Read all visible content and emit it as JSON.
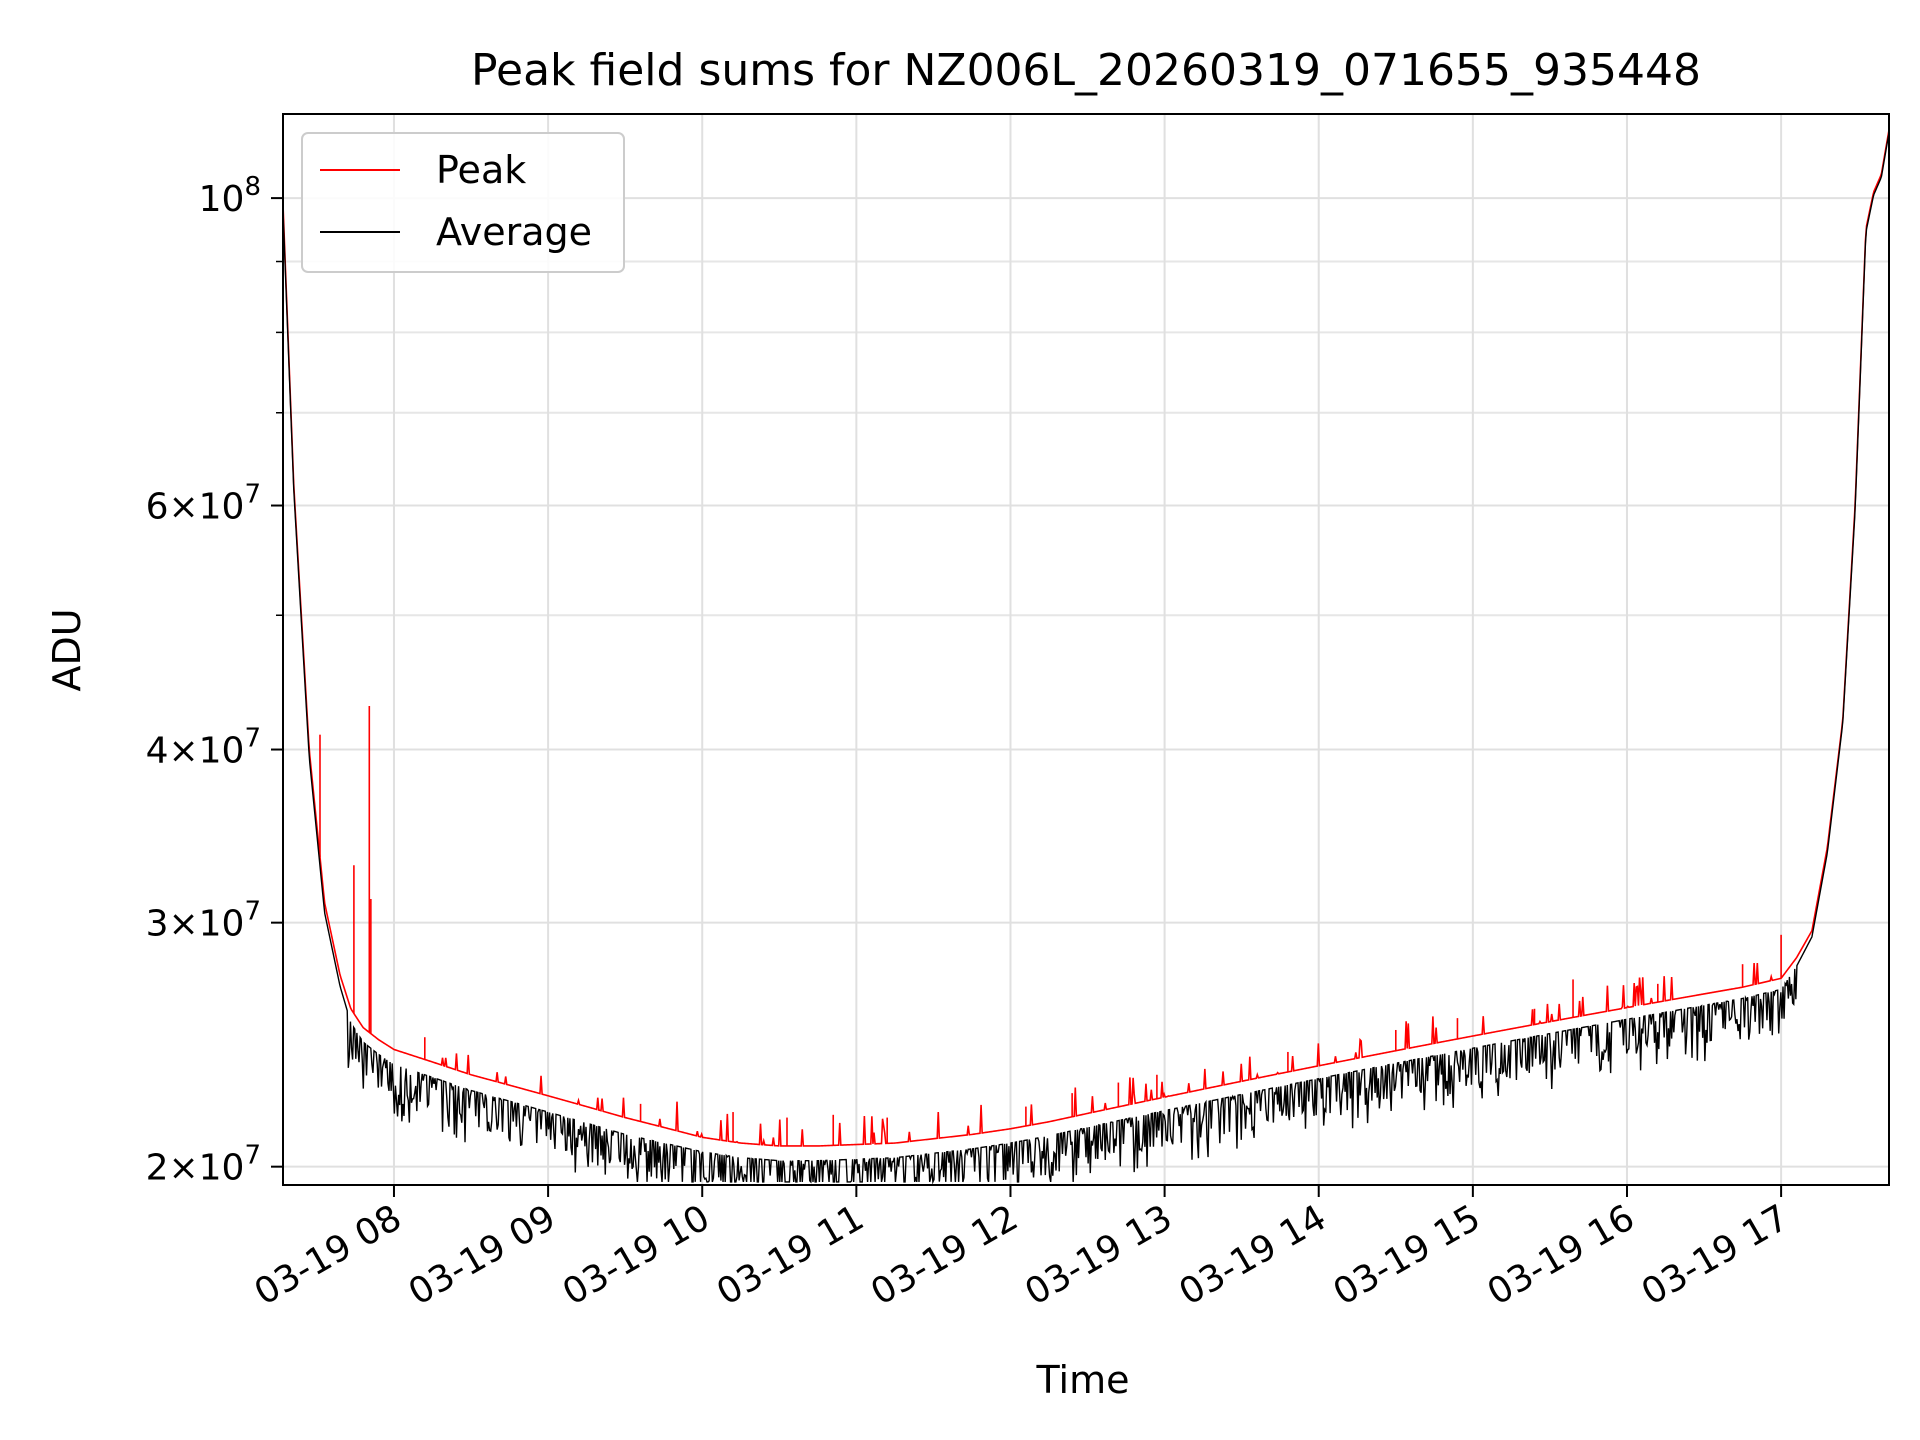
{
  "chart_data": {
    "type": "line",
    "title": "Peak field sums for NZ006L_20260319_071655_935448",
    "xlabel": "Time",
    "ylabel": "ADU",
    "yscale": "log",
    "ylim": [
      19400000,
      115000000
    ],
    "xlim_hours": [
      7.28,
      17.7
    ],
    "grid": true,
    "legend_position": "upper-left",
    "x_ticks": [
      {
        "hour": 8,
        "label": "03-19 08"
      },
      {
        "hour": 9,
        "label": "03-19 09"
      },
      {
        "hour": 10,
        "label": "03-19 10"
      },
      {
        "hour": 11,
        "label": "03-19 11"
      },
      {
        "hour": 12,
        "label": "03-19 12"
      },
      {
        "hour": 13,
        "label": "03-19 13"
      },
      {
        "hour": 14,
        "label": "03-19 14"
      },
      {
        "hour": 15,
        "label": "03-19 15"
      },
      {
        "hour": 16,
        "label": "03-19 16"
      },
      {
        "hour": 17,
        "label": "03-19 17"
      }
    ],
    "y_major_ticks": [
      {
        "value": 20000000,
        "mantissa": "2",
        "exponent": "7"
      },
      {
        "value": 30000000,
        "mantissa": "3",
        "exponent": "7"
      },
      {
        "value": 40000000,
        "mantissa": "4",
        "exponent": "7"
      },
      {
        "value": 60000000,
        "mantissa": "6",
        "exponent": "7"
      },
      {
        "value": 100000000,
        "mantissa": "",
        "exponent": "8"
      }
    ],
    "y_minor_ticks": [
      50000000,
      70000000,
      80000000,
      90000000
    ],
    "y_tick_base": "10",
    "y_tick_times": "×",
    "series": [
      {
        "name": "Peak",
        "color": "#ff0000",
        "x_hours": [
          7.28,
          7.35,
          7.45,
          7.55,
          7.65,
          7.72,
          7.8,
          7.9,
          8.0,
          8.25,
          8.5,
          8.75,
          9.0,
          9.25,
          9.5,
          9.75,
          10.0,
          10.25,
          10.5,
          10.75,
          11.0,
          11.25,
          11.5,
          11.75,
          12.0,
          12.25,
          12.5,
          12.75,
          13.0,
          13.25,
          13.5,
          13.75,
          14.0,
          14.25,
          14.5,
          14.75,
          15.0,
          15.25,
          15.5,
          15.75,
          16.0,
          16.25,
          16.5,
          16.75,
          17.0,
          17.1,
          17.2,
          17.3,
          17.4,
          17.48,
          17.55,
          17.6,
          17.65,
          17.7
        ],
        "values": [
          99000000,
          62000000,
          40000000,
          31000000,
          27500000,
          26000000,
          25200000,
          24700000,
          24300000,
          23800000,
          23300000,
          22900000,
          22500000,
          22100000,
          21700000,
          21350000,
          21000000,
          20800000,
          20700000,
          20700000,
          20750000,
          20800000,
          20950000,
          21100000,
          21300000,
          21550000,
          21850000,
          22150000,
          22450000,
          22750000,
          23050000,
          23350000,
          23650000,
          23950000,
          24250000,
          24550000,
          24850000,
          25150000,
          25450000,
          25750000,
          26050000,
          26350000,
          26650000,
          26950000,
          27350000,
          28300000,
          29600000,
          34000000,
          42000000,
          60000000,
          95000000,
          101000000,
          104000000,
          112000000
        ],
        "spikes": [
          {
            "hour": 7.52,
            "value": 41000000
          },
          {
            "hour": 7.74,
            "value": 33000000
          },
          {
            "hour": 7.84,
            "value": 43000000
          },
          {
            "hour": 7.85,
            "value": 31200000
          },
          {
            "hour": 8.2,
            "value": 24800000
          },
          {
            "hour": 9.6,
            "value": 22200000
          },
          {
            "hour": 10.2,
            "value": 21900000
          },
          {
            "hour": 10.55,
            "value": 21700000
          },
          {
            "hour": 10.85,
            "value": 21800000
          },
          {
            "hour": 11.2,
            "value": 21700000
          },
          {
            "hour": 12.1,
            "value": 22100000
          },
          {
            "hour": 12.4,
            "value": 22600000
          },
          {
            "hour": 12.7,
            "value": 23000000
          },
          {
            "hour": 12.95,
            "value": 23300000
          },
          {
            "hour": 13.8,
            "value": 24200000
          },
          {
            "hour": 14.5,
            "value": 25100000
          },
          {
            "hour": 14.9,
            "value": 25600000
          },
          {
            "hour": 15.4,
            "value": 26000000
          },
          {
            "hour": 15.65,
            "value": 27300000
          },
          {
            "hour": 16.2,
            "value": 27100000
          },
          {
            "hour": 16.75,
            "value": 28000000
          },
          {
            "hour": 17.0,
            "value": 29400000
          }
        ]
      },
      {
        "name": "Average",
        "color": "#000000",
        "x_hours": [
          7.28,
          7.35,
          7.45,
          7.55,
          7.65,
          7.72,
          7.8,
          7.9,
          8.0,
          8.25,
          8.5,
          8.75,
          9.0,
          9.25,
          9.5,
          9.75,
          10.0,
          10.25,
          10.5,
          10.75,
          11.0,
          11.25,
          11.5,
          11.75,
          12.0,
          12.25,
          12.5,
          12.75,
          13.0,
          13.25,
          13.5,
          13.75,
          14.0,
          14.25,
          14.5,
          14.75,
          15.0,
          15.25,
          15.5,
          15.75,
          16.0,
          16.25,
          16.5,
          16.75,
          17.0,
          17.1,
          17.2,
          17.3,
          17.4,
          17.48,
          17.55,
          17.6,
          17.65,
          17.7
        ],
        "values": [
          98000000,
          61500000,
          39500000,
          30500000,
          27000000,
          25400000,
          24600000,
          24100000,
          23700000,
          23200000,
          22700000,
          22300000,
          21900000,
          21500000,
          21100000,
          20800000,
          20500000,
          20300000,
          20200000,
          20200000,
          20250000,
          20300000,
          20450000,
          20600000,
          20800000,
          21050000,
          21350000,
          21650000,
          21950000,
          22250000,
          22550000,
          22850000,
          23150000,
          23450000,
          23750000,
          24050000,
          24350000,
          24650000,
          24950000,
          25250000,
          25550000,
          25850000,
          26150000,
          26450000,
          26850000,
          27900000,
          29300000,
          33700000,
          41800000,
          59500000,
          94500000,
          100500000,
          103500000,
          111500000
        ],
        "dip_depth_min": 19500000
      }
    ]
  }
}
